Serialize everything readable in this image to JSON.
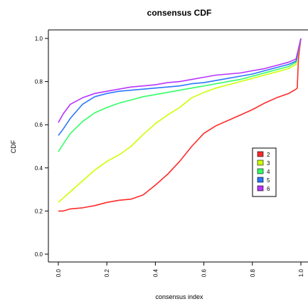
{
  "chart_data": {
    "type": "line",
    "title": "consensus CDF",
    "xlabel": "consensus index",
    "ylabel": "CDF",
    "xlim": [
      0,
      1
    ],
    "ylim": [
      0,
      1
    ],
    "xticks": [
      "0.0",
      "0.2",
      "0.4",
      "0.6",
      "0.8",
      "1.0"
    ],
    "yticks": [
      "0.0",
      "0.2",
      "0.4",
      "0.6",
      "0.8",
      "1.0"
    ],
    "grid": false,
    "legend_position": "right",
    "series": [
      {
        "name": "2",
        "color": "#ff2a2a",
        "x": [
          0.0,
          0.02,
          0.05,
          0.1,
          0.15,
          0.2,
          0.25,
          0.3,
          0.35,
          0.4,
          0.45,
          0.5,
          0.55,
          0.6,
          0.65,
          0.7,
          0.75,
          0.8,
          0.85,
          0.9,
          0.95,
          0.98,
          0.985,
          0.99,
          1.0
        ],
        "y": [
          0.2,
          0.2,
          0.21,
          0.215,
          0.225,
          0.24,
          0.25,
          0.255,
          0.275,
          0.32,
          0.37,
          0.43,
          0.5,
          0.56,
          0.595,
          0.62,
          0.645,
          0.67,
          0.7,
          0.725,
          0.745,
          0.765,
          0.77,
          0.91,
          1.0
        ]
      },
      {
        "name": "3",
        "color": "#ccff00",
        "x": [
          0.0,
          0.02,
          0.05,
          0.1,
          0.15,
          0.2,
          0.25,
          0.3,
          0.35,
          0.4,
          0.45,
          0.5,
          0.55,
          0.6,
          0.65,
          0.7,
          0.75,
          0.8,
          0.85,
          0.9,
          0.95,
          0.98,
          1.0
        ],
        "y": [
          0.24,
          0.26,
          0.29,
          0.34,
          0.39,
          0.43,
          0.46,
          0.5,
          0.555,
          0.605,
          0.645,
          0.68,
          0.725,
          0.75,
          0.77,
          0.785,
          0.8,
          0.815,
          0.83,
          0.845,
          0.86,
          0.88,
          1.0
        ]
      },
      {
        "name": "4",
        "color": "#33ff66",
        "x": [
          0.0,
          0.02,
          0.05,
          0.1,
          0.15,
          0.2,
          0.25,
          0.3,
          0.35,
          0.4,
          0.45,
          0.5,
          0.55,
          0.6,
          0.65,
          0.7,
          0.75,
          0.8,
          0.85,
          0.9,
          0.95,
          0.98,
          1.0
        ],
        "y": [
          0.475,
          0.51,
          0.56,
          0.615,
          0.655,
          0.68,
          0.7,
          0.715,
          0.73,
          0.74,
          0.75,
          0.76,
          0.77,
          0.78,
          0.79,
          0.8,
          0.81,
          0.825,
          0.84,
          0.855,
          0.87,
          0.89,
          1.0
        ]
      },
      {
        "name": "5",
        "color": "#2a77ff",
        "x": [
          0.0,
          0.02,
          0.05,
          0.1,
          0.15,
          0.2,
          0.25,
          0.3,
          0.35,
          0.4,
          0.45,
          0.5,
          0.55,
          0.6,
          0.65,
          0.7,
          0.75,
          0.8,
          0.85,
          0.9,
          0.95,
          0.98,
          1.0
        ],
        "y": [
          0.55,
          0.58,
          0.63,
          0.695,
          0.73,
          0.745,
          0.755,
          0.76,
          0.765,
          0.77,
          0.775,
          0.78,
          0.79,
          0.795,
          0.805,
          0.815,
          0.825,
          0.835,
          0.85,
          0.865,
          0.88,
          0.895,
          1.0
        ]
      },
      {
        "name": "6",
        "color": "#b833ff",
        "x": [
          0.0,
          0.02,
          0.05,
          0.1,
          0.15,
          0.2,
          0.25,
          0.3,
          0.35,
          0.4,
          0.45,
          0.5,
          0.55,
          0.6,
          0.65,
          0.7,
          0.75,
          0.8,
          0.85,
          0.9,
          0.95,
          0.98,
          1.0
        ],
        "y": [
          0.61,
          0.65,
          0.695,
          0.725,
          0.745,
          0.755,
          0.765,
          0.775,
          0.78,
          0.785,
          0.795,
          0.8,
          0.81,
          0.82,
          0.83,
          0.835,
          0.84,
          0.85,
          0.86,
          0.875,
          0.89,
          0.905,
          1.0
        ]
      }
    ]
  }
}
